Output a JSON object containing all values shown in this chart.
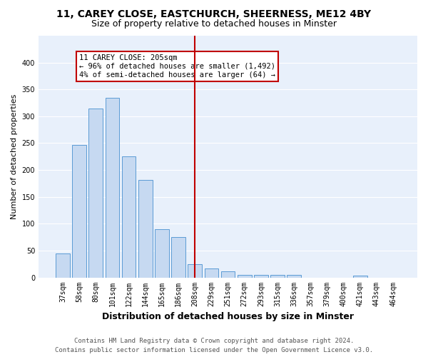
{
  "title1": "11, CAREY CLOSE, EASTCHURCH, SHEERNESS, ME12 4BY",
  "title2": "Size of property relative to detached houses in Minster",
  "xlabel": "Distribution of detached houses by size in Minster",
  "ylabel": "Number of detached properties",
  "categories": [
    "37sqm",
    "58sqm",
    "80sqm",
    "101sqm",
    "122sqm",
    "144sqm",
    "165sqm",
    "186sqm",
    "208sqm",
    "229sqm",
    "251sqm",
    "272sqm",
    "293sqm",
    "315sqm",
    "336sqm",
    "357sqm",
    "379sqm",
    "400sqm",
    "421sqm",
    "443sqm",
    "464sqm"
  ],
  "values": [
    44,
    246,
    314,
    335,
    226,
    181,
    90,
    75,
    25,
    17,
    11,
    5,
    5,
    5,
    5,
    0,
    0,
    0,
    4,
    0,
    0
  ],
  "bar_color": "#c6d9f1",
  "bar_edge_color": "#5b9bd5",
  "vline_x_index": 8,
  "vline_color": "#c00000",
  "annotation_text": "11 CAREY CLOSE: 205sqm\n← 96% of detached houses are smaller (1,492)\n4% of semi-detached houses are larger (64) →",
  "annotation_box_color": "#ffffff",
  "annotation_box_edge_color": "#c00000",
  "ylim": [
    0,
    450
  ],
  "yticks": [
    0,
    50,
    100,
    150,
    200,
    250,
    300,
    350,
    400
  ],
  "background_color": "#e8f0fb",
  "footer_text": "Contains HM Land Registry data © Crown copyright and database right 2024.\nContains public sector information licensed under the Open Government Licence v3.0.",
  "title1_fontsize": 10,
  "title2_fontsize": 9,
  "xlabel_fontsize": 9,
  "ylabel_fontsize": 8,
  "tick_fontsize": 7,
  "annotation_fontsize": 7.5,
  "footer_fontsize": 6.5
}
